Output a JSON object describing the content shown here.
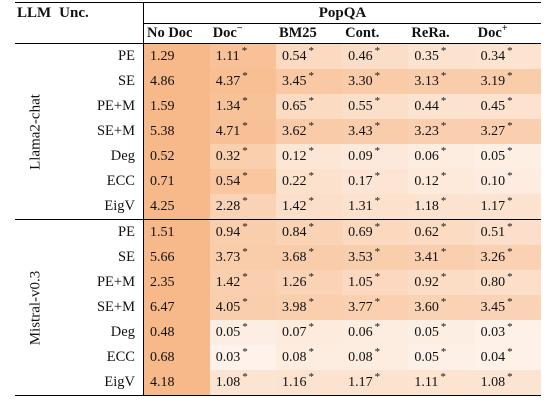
{
  "header": {
    "llm_label": "LLM",
    "unc_label": "Unc.",
    "dataset": "PopQA",
    "methods": [
      {
        "base": "No Doc",
        "sup": ""
      },
      {
        "base": "Doc",
        "sup": "−"
      },
      {
        "base": "BM25",
        "sup": ""
      },
      {
        "base": "Cont.",
        "sup": ""
      },
      {
        "base": "ReRa.",
        "sup": ""
      },
      {
        "base": "Doc",
        "sup": "+"
      }
    ]
  },
  "star_mark": "*",
  "groups": [
    {
      "model": "Llama2-chat",
      "rows": [
        {
          "unc": "PE",
          "values": [
            "1.29",
            "1.11",
            "0.54",
            "0.46",
            "0.35",
            "0.34"
          ]
        },
        {
          "unc": "SE",
          "values": [
            "4.86",
            "4.37",
            "3.45",
            "3.30",
            "3.13",
            "3.19"
          ]
        },
        {
          "unc": "PE+M",
          "values": [
            "1.59",
            "1.34",
            "0.65",
            "0.55",
            "0.44",
            "0.45"
          ]
        },
        {
          "unc": "SE+M",
          "values": [
            "5.38",
            "4.71",
            "3.62",
            "3.43",
            "3.23",
            "3.27"
          ]
        },
        {
          "unc": "Deg",
          "values": [
            "0.52",
            "0.32",
            "0.12",
            "0.09",
            "0.06",
            "0.05"
          ]
        },
        {
          "unc": "ECC",
          "values": [
            "0.71",
            "0.54",
            "0.22",
            "0.17",
            "0.12",
            "0.10"
          ]
        },
        {
          "unc": "EigV",
          "values": [
            "4.25",
            "2.28",
            "1.42",
            "1.31",
            "1.18",
            "1.17"
          ]
        }
      ]
    },
    {
      "model": "Mistral-v0.3",
      "rows": [
        {
          "unc": "PE",
          "values": [
            "1.51",
            "0.94",
            "0.84",
            "0.69",
            "0.62",
            "0.51"
          ]
        },
        {
          "unc": "SE",
          "values": [
            "5.66",
            "3.73",
            "3.68",
            "3.53",
            "3.41",
            "3.26"
          ]
        },
        {
          "unc": "PE+M",
          "values": [
            "2.35",
            "1.42",
            "1.26",
            "1.05",
            "0.92",
            "0.80"
          ]
        },
        {
          "unc": "SE+M",
          "values": [
            "6.47",
            "4.05",
            "3.98",
            "3.77",
            "3.60",
            "3.45"
          ]
        },
        {
          "unc": "Deg",
          "values": [
            "0.48",
            "0.05",
            "0.07",
            "0.06",
            "0.05",
            "0.03"
          ]
        },
        {
          "unc": "ECC",
          "values": [
            "0.68",
            "0.03",
            "0.08",
            "0.08",
            "0.05",
            "0.04"
          ]
        },
        {
          "unc": "EigV",
          "values": [
            "4.18",
            "1.08",
            "1.16",
            "1.17",
            "1.11",
            "1.08"
          ]
        }
      ]
    }
  ],
  "colors": {
    "shade_strong": "#f7b98a",
    "shade_light": "#fef6f0"
  }
}
